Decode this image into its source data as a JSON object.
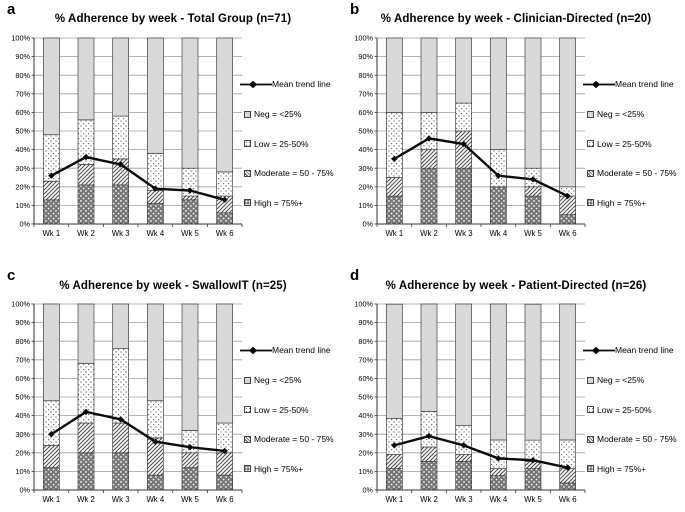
{
  "figure": {
    "y_ticks": [
      "0%",
      "10%",
      "20%",
      "30%",
      "40%",
      "50%",
      "60%",
      "70%",
      "80%",
      "90%",
      "100%"
    ],
    "x_labels": [
      "Wk 1",
      "Wk 2",
      "Wk 3",
      "Wk 4",
      "Wk 5",
      "Wk 6"
    ]
  },
  "legend": {
    "trend_label": "Mean trend line",
    "items": [
      {
        "key": "neg",
        "label": "Neg = <25%"
      },
      {
        "key": "low",
        "label": "Low = 25-50%"
      },
      {
        "key": "moderate",
        "label": "Moderate = 50 - 75%"
      },
      {
        "key": "high",
        "label": "High = 75%+"
      }
    ]
  },
  "colors": {
    "background": "#ffffff",
    "neg_fill": "#d9d9d9",
    "pattern_dark": "#757575",
    "hatch_line": "#4a4a4a",
    "dot": "#707070",
    "bar_border": "#3f3f3f",
    "gridline": "#9b9b9b",
    "axis": "#333333",
    "trend_line": "#0a0a0a",
    "text": "#000000"
  },
  "chart_data": [
    {
      "type": "bar",
      "subtype": "stacked-bars-with-trend-line",
      "letter": "a",
      "title": "% Adherence by week - Total Group (n=71)",
      "categories": [
        "Wk 1",
        "Wk 2",
        "Wk 3",
        "Wk 4",
        "Wk 5",
        "Wk 6"
      ],
      "ylim": [
        0,
        100
      ],
      "y_tick_step": 10,
      "grid": true,
      "legend_position": "right",
      "series": [
        {
          "name": "High = 75%+",
          "key": "high",
          "values": [
            13,
            21,
            21,
            11,
            13,
            6
          ]
        },
        {
          "name": "Moderate = 50 - 75%",
          "key": "moderate",
          "values": [
            10,
            11,
            14,
            7,
            2,
            9
          ]
        },
        {
          "name": "Low = 25-50%",
          "key": "low",
          "values": [
            25,
            24,
            23,
            20,
            15,
            13
          ]
        },
        {
          "name": "Neg = <25%",
          "key": "neg",
          "values": [
            52,
            44,
            42,
            62,
            70,
            72
          ]
        }
      ],
      "trend": {
        "name": "Mean trend line",
        "values": [
          26,
          36,
          32,
          19,
          18,
          13
        ]
      }
    },
    {
      "type": "bar",
      "subtype": "stacked-bars-with-trend-line",
      "letter": "b",
      "title": "% Adherence by week - Clinician-Directed (n=20)",
      "categories": [
        "Wk 1",
        "Wk 2",
        "Wk 3",
        "Wk 4",
        "Wk 5",
        "Wk 6"
      ],
      "ylim": [
        0,
        100
      ],
      "y_tick_step": 10,
      "grid": true,
      "legend_position": "right",
      "series": [
        {
          "name": "High = 75%+",
          "key": "high",
          "values": [
            15,
            30,
            30,
            20,
            15,
            5
          ]
        },
        {
          "name": "Moderate = 50 - 75%",
          "key": "moderate",
          "values": [
            10,
            10,
            20,
            0,
            5,
            10
          ]
        },
        {
          "name": "Low = 25-50%",
          "key": "low",
          "values": [
            35,
            20,
            15,
            20,
            10,
            5
          ]
        },
        {
          "name": "Neg = <25%",
          "key": "neg",
          "values": [
            40,
            40,
            35,
            60,
            70,
            80
          ]
        }
      ],
      "trend": {
        "name": "Mean trend line",
        "values": [
          35,
          46,
          43,
          26,
          24,
          15
        ]
      }
    },
    {
      "type": "bar",
      "subtype": "stacked-bars-with-trend-line",
      "letter": "c",
      "title": "% Adherence by week - SwallowIT (n=25)",
      "categories": [
        "Wk 1",
        "Wk 2",
        "Wk 3",
        "Wk 4",
        "Wk 5",
        "Wk 6"
      ],
      "ylim": [
        0,
        100
      ],
      "y_tick_step": 10,
      "grid": true,
      "legend_position": "right",
      "series": [
        {
          "name": "High = 75%+",
          "key": "high",
          "values": [
            12,
            20,
            20,
            8,
            12,
            8
          ]
        },
        {
          "name": "Moderate = 50 - 75%",
          "key": "moderate",
          "values": [
            12,
            16,
            16,
            20,
            8,
            12
          ]
        },
        {
          "name": "Low = 25-50%",
          "key": "low",
          "values": [
            24,
            32,
            40,
            20,
            12,
            16
          ]
        },
        {
          "name": "Neg = <25%",
          "key": "neg",
          "values": [
            52,
            32,
            24,
            52,
            68,
            64
          ]
        }
      ],
      "trend": {
        "name": "Mean trend line",
        "values": [
          30,
          42,
          38,
          26,
          23,
          21
        ]
      }
    },
    {
      "type": "bar",
      "subtype": "stacked-bars-with-trend-line",
      "letter": "d",
      "title": "% Adherence by week - Patient-Directed  (n=26)",
      "categories": [
        "Wk 1",
        "Wk 2",
        "Wk 3",
        "Wk 4",
        "Wk 5",
        "Wk 6"
      ],
      "ylim": [
        0,
        100
      ],
      "y_tick_step": 10,
      "grid": true,
      "legend_position": "right",
      "series": [
        {
          "name": "High = 75%+",
          "key": "high",
          "values": [
            11.5,
            15.4,
            15.4,
            7.7,
            11.5,
            3.8
          ]
        },
        {
          "name": "Moderate = 50 - 75%",
          "key": "moderate",
          "values": [
            7.7,
            7.7,
            3.8,
            3.8,
            3.8,
            7.7
          ]
        },
        {
          "name": "Low = 25-50%",
          "key": "low",
          "values": [
            19.2,
            19.2,
            15.4,
            15.4,
            11.5,
            15.4
          ]
        },
        {
          "name": "Neg = <25%",
          "key": "neg",
          "values": [
            61.5,
            57.7,
            65.4,
            73.1,
            73.1,
            73.1
          ]
        }
      ],
      "trend": {
        "name": "Mean trend line",
        "values": [
          24,
          29,
          24,
          17,
          16,
          12
        ]
      }
    }
  ]
}
